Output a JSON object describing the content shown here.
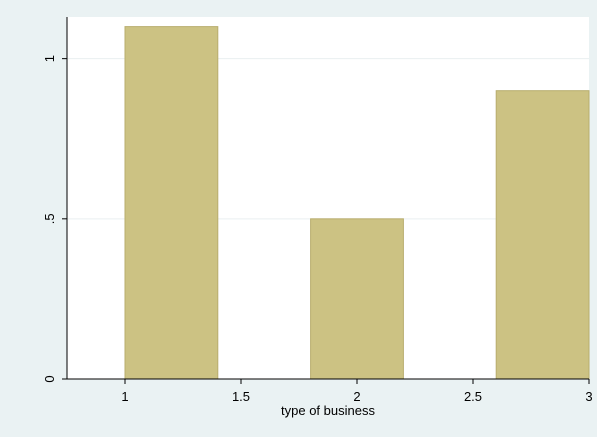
{
  "chart_data": {
    "type": "bar",
    "x": [
      1.2,
      2.0,
      2.8
    ],
    "values": [
      1.1,
      0.5,
      0.9
    ],
    "bar_width": 0.4,
    "xlim": [
      0.75,
      3.0
    ],
    "ylim": [
      0,
      1.13
    ],
    "xticks": [
      1,
      1.5,
      2,
      2.5,
      3
    ],
    "xtick_labels": [
      "1",
      "1.5",
      "2",
      "2.5",
      "3"
    ],
    "yticks": [
      0,
      0.5,
      1
    ],
    "ytick_labels": [
      "0",
      ".5",
      "1"
    ],
    "xlabel": "type of business",
    "ylabel": "",
    "grid": true,
    "grid_axis": "y",
    "legend": "none",
    "colors": {
      "bar_fill": "#ccc283",
      "bar_stroke": "#b8ad6e",
      "plot_bg": "#ffffff",
      "outer_bg": "#eaf2f3",
      "grid": "#e9eff0",
      "axis": "#000000"
    }
  }
}
